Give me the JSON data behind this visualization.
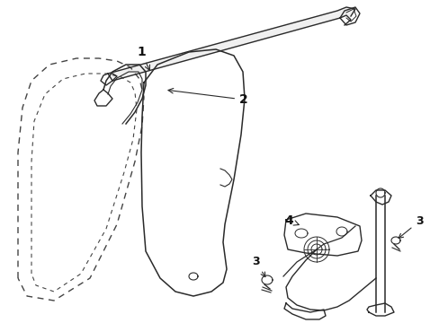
{
  "bg_color": "#ffffff",
  "line_color": "#2a2a2a",
  "dashed_color": "#444444",
  "label_color": "#111111",
  "figsize": [
    4.89,
    3.6
  ],
  "dpi": 100
}
